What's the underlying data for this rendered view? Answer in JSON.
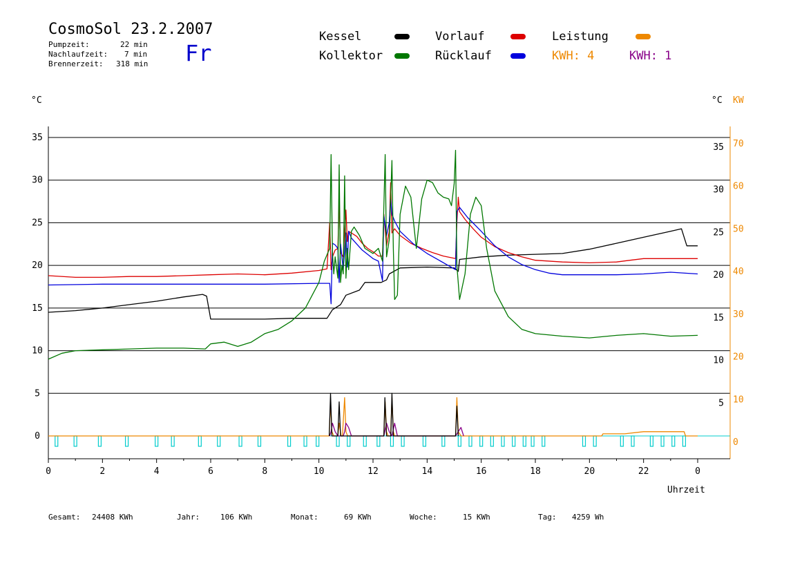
{
  "header": {
    "title": "CosmoSol 23.2.2007",
    "pumpzeit_label": "Pumpzeit:",
    "pumpzeit_value": "22 min",
    "nachlaufzeit_label": "Nachlaufzeit:",
    "nachlaufzeit_value": "7 min",
    "brennerzeit_label": "Brennerzeit:",
    "brennerzeit_value": "318 min",
    "day": "Fr"
  },
  "legend": {
    "kessel": "Kessel",
    "vorlauf": "Vorlauf",
    "leistung": "Leistung",
    "kollektor": "Kollektor",
    "ruecklauf": "Rücklauf",
    "kwh_orange": "KWH: 4",
    "kwh_purple": "KWH: 1"
  },
  "axes": {
    "left_unit": "°C",
    "right_unit": "°C",
    "right_unit2": "KW",
    "xlabel": "Uhrzeit"
  },
  "footer": {
    "gesamt_label": "Gesamt:",
    "gesamt_value": "24408 KWh",
    "jahr_label": "Jahr:",
    "jahr_value": "106 KWh",
    "monat_label": "Monat:",
    "monat_value": "69 KWh",
    "woche_label": "Woche:",
    "woche_value": "15 KWh",
    "tag_label": "Tag:",
    "tag_value": "4259 Wh"
  },
  "colors": {
    "kessel": "#000000",
    "vorlauf": "#dd0000",
    "ruecklauf": "#0000dd",
    "kollektor": "#007700",
    "leistung": "#ee8800",
    "kwh2": "#880088",
    "pump": "#00cccc"
  },
  "chart_data": {
    "type": "line",
    "xlabel": "Uhrzeit",
    "xlim": [
      0,
      24
    ],
    "ylim_left": [
      -0.5,
      35
    ],
    "ylim_right_kw": [
      -1,
      70
    ],
    "x_ticks": [
      "0",
      "2",
      "4",
      "6",
      "8",
      "10",
      "12",
      "14",
      "16",
      "18",
      "20",
      "22",
      "0"
    ],
    "y_ticks_left": [
      "0",
      "5",
      "10",
      "15",
      "20",
      "25",
      "30",
      "35"
    ],
    "y_ticks_right": [
      "5",
      "10",
      "15",
      "20",
      "25",
      "30",
      "35"
    ],
    "y_ticks_kw": [
      "0",
      "10",
      "20",
      "30",
      "40",
      "50",
      "60",
      "70"
    ],
    "grid": true,
    "series": [
      {
        "name": "Kessel",
        "color": "#000000",
        "x": [
          0,
          1,
          2,
          3,
          4,
          5,
          5.7,
          5.85,
          6,
          7,
          8,
          9,
          10.3,
          10.5,
          10.8,
          11,
          11.5,
          11.7,
          12.3,
          12.5,
          12.6,
          13,
          14,
          15,
          15.15,
          15.2,
          16,
          17,
          18,
          19,
          20,
          21,
          22,
          23,
          23.4,
          23.6,
          24
        ],
        "y": [
          14.5,
          14.7,
          15,
          15.4,
          15.8,
          16.3,
          16.6,
          16.4,
          13.7,
          13.7,
          13.7,
          13.8,
          13.8,
          14.8,
          15.4,
          16.5,
          17.1,
          18,
          18,
          18.3,
          19,
          19.7,
          19.8,
          19.7,
          19.3,
          20.7,
          21,
          21.2,
          21.3,
          21.4,
          21.9,
          22.6,
          23.3,
          24,
          24.3,
          22.3,
          22.3
        ]
      },
      {
        "name": "Vorlauf",
        "color": "#dd0000",
        "x": [
          0,
          1,
          2,
          3,
          4,
          5,
          6,
          7,
          8,
          9,
          10,
          10.3,
          10.4,
          10.45,
          10.5,
          10.6,
          10.7,
          10.75,
          10.8,
          10.9,
          11,
          11.05,
          11.1,
          11.2,
          11.4,
          11.6,
          11.8,
          12,
          12.2,
          12.35,
          12.4,
          12.5,
          12.6,
          12.65,
          12.7,
          12.8,
          13,
          13.4,
          13.8,
          14.2,
          14.6,
          15.05,
          15.1,
          15.15,
          15.2,
          15.4,
          15.7,
          16,
          16.5,
          17,
          17.5,
          18,
          19,
          20,
          21,
          21.5,
          22,
          23,
          24
        ],
        "y": [
          18.8,
          18.6,
          18.6,
          18.7,
          18.7,
          18.8,
          18.9,
          19,
          18.9,
          19.1,
          19.4,
          19.6,
          25,
          19.5,
          21,
          21.8,
          22,
          27.5,
          21.5,
          21,
          26.5,
          22.8,
          24,
          23.8,
          23.4,
          22.6,
          22,
          21.6,
          21.1,
          21.1,
          26,
          22.3,
          24,
          29.7,
          23.8,
          24.3,
          23.5,
          22.6,
          22,
          21.5,
          21.1,
          20.8,
          25,
          28,
          26.3,
          25.4,
          24.3,
          23.3,
          22.2,
          21.5,
          21,
          20.6,
          20.4,
          20.3,
          20.4,
          20.6,
          20.8,
          20.8,
          20.8
        ]
      },
      {
        "name": "Rücklauf",
        "color": "#0000dd",
        "x": [
          0,
          2,
          4,
          6,
          8,
          10,
          10.4,
          10.45,
          10.5,
          10.6,
          10.7,
          10.75,
          10.8,
          10.9,
          11,
          11.05,
          11.1,
          11.2,
          11.4,
          11.6,
          11.8,
          12,
          12.2,
          12.35,
          12.4,
          12.5,
          12.6,
          12.65,
          12.7,
          12.8,
          13,
          13.5,
          14,
          14.5,
          15.05,
          15.1,
          15.2,
          15.5,
          16,
          16.5,
          17,
          17.5,
          18,
          18.5,
          19,
          20,
          21,
          22,
          23,
          24
        ],
        "y": [
          17.7,
          17.8,
          17.8,
          17.8,
          17.8,
          17.9,
          17.9,
          15.5,
          22.6,
          22.4,
          22,
          18,
          22.5,
          19.5,
          23.8,
          19.8,
          24,
          23.2,
          22.5,
          21.8,
          21.3,
          20.8,
          20.5,
          18.2,
          25.8,
          23.5,
          25,
          27.8,
          26,
          25.2,
          24,
          22.5,
          21.4,
          20.5,
          19.5,
          26.3,
          26.8,
          25.6,
          24,
          22.3,
          21,
          20.1,
          19.5,
          19.1,
          18.9,
          18.9,
          18.9,
          19,
          19.2,
          19
        ]
      },
      {
        "name": "Kollektor",
        "color": "#007700",
        "x": [
          0,
          0.5,
          1,
          2,
          3,
          4,
          5,
          5.8,
          6,
          6.5,
          7,
          7.5,
          8,
          8.5,
          9,
          9.5,
          10,
          10.2,
          10.4,
          10.45,
          10.5,
          10.55,
          10.6,
          10.7,
          10.75,
          10.8,
          10.85,
          10.9,
          10.95,
          11,
          11.05,
          11.1,
          11.2,
          11.3,
          11.5,
          11.7,
          12,
          12.2,
          12.35,
          12.45,
          12.5,
          12.6,
          12.7,
          12.75,
          12.8,
          12.9,
          13,
          13.2,
          13.4,
          13.6,
          13.8,
          14,
          14.2,
          14.4,
          14.6,
          14.8,
          14.9,
          15,
          15.05,
          15.1,
          15.2,
          15.4,
          15.6,
          15.8,
          16,
          16.2,
          16.5,
          17,
          17.5,
          18,
          19,
          20,
          21,
          22,
          23,
          24
        ],
        "y": [
          9,
          9.7,
          10,
          10.1,
          10.2,
          10.3,
          10.3,
          10.2,
          10.8,
          11,
          10.5,
          11,
          12,
          12.5,
          13.5,
          15,
          18,
          20.5,
          22,
          33,
          21.5,
          19,
          21,
          18.5,
          31.8,
          18,
          20,
          19,
          30.5,
          18.5,
          22,
          19.5,
          24,
          24.5,
          23.5,
          22,
          21.4,
          22,
          20.5,
          33,
          21,
          23,
          32.3,
          22,
          16,
          16.5,
          26,
          29.3,
          28,
          22,
          27.8,
          30,
          29.7,
          28.5,
          28,
          27.8,
          27,
          29.6,
          33.5,
          20,
          16,
          19,
          26,
          28,
          27,
          22,
          17,
          14,
          12.5,
          12,
          11.7,
          11.5,
          11.8,
          12,
          11.7,
          11.8
        ]
      }
    ],
    "leistung_kw": {
      "color": "#ee8800",
      "x": [
        0,
        10.38,
        10.43,
        10.48,
        10.55,
        10.58,
        10.64,
        10.7,
        10.75,
        10.82,
        10.87,
        10.95,
        11.0,
        11.06,
        11.12,
        11.3,
        12.4,
        12.45,
        12.5,
        12.56,
        12.65,
        12.7,
        12.75,
        12.8,
        12.9,
        15.05,
        15.1,
        15.15,
        15.25,
        20.45,
        20.5,
        21.3,
        22,
        23.5,
        23.55,
        24
      ],
      "y": [
        0,
        0,
        8,
        1,
        0,
        0,
        0,
        0,
        3,
        0,
        0,
        9,
        1,
        0,
        0,
        0,
        0,
        8,
        1,
        0,
        0,
        9,
        1,
        0,
        0,
        0,
        9,
        1,
        0,
        0,
        0.5,
        0.5,
        1,
        1,
        0,
        0
      ]
    },
    "kwh1_kw": {
      "color": "#880088",
      "x": [
        10.4,
        10.45,
        10.5,
        10.6,
        10.7,
        10.9,
        10.95,
        11.0,
        11.1,
        11.2,
        12.4,
        12.5,
        12.6,
        12.7,
        12.8,
        12.9,
        15.05,
        15.15,
        15.25,
        15.35
      ],
      "y": [
        0,
        1,
        3,
        1,
        0,
        0,
        1,
        3,
        2,
        0,
        0,
        3,
        1,
        0,
        3,
        0,
        0,
        1,
        2,
        0
      ]
    },
    "kessel_kw": {
      "color": "#000000",
      "x": [
        10.38,
        10.43,
        10.48,
        10.7,
        10.75,
        10.8,
        12.4,
        12.44,
        12.5,
        12.66,
        12.7,
        12.75,
        15.05,
        15.1,
        15.15
      ],
      "y": [
        0,
        10,
        0,
        0,
        8,
        0,
        0,
        9,
        0,
        0,
        10,
        0,
        0,
        7,
        0
      ]
    },
    "pump_on_times": [
      0.3,
      1.0,
      1.9,
      2.9,
      4.0,
      4.6,
      5.6,
      6.3,
      7.1,
      7.8,
      8.9,
      9.5,
      9.95,
      10.7,
      11.1,
      11.7,
      12.2,
      12.7,
      13.1,
      13.9,
      14.6,
      15.2,
      15.6,
      16,
      16.4,
      16.8,
      17.2,
      17.6,
      17.9,
      18.3,
      19.8,
      20.2,
      21.2,
      21.6,
      22.3,
      22.7,
      23.1,
      23.5
    ]
  }
}
